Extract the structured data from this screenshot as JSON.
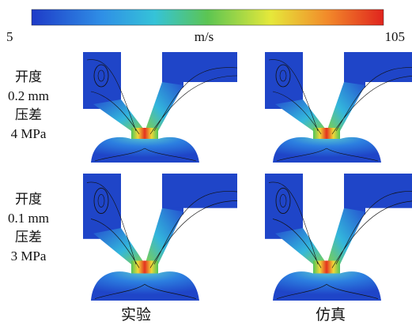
{
  "colorbar": {
    "min": 5,
    "unit": "m/s",
    "max": 105
  },
  "rows": [
    {
      "lines": [
        "开度",
        "0.2 mm",
        "压差",
        "4 MPa"
      ]
    },
    {
      "lines": [
        "开度",
        "0.1 mm",
        "压差",
        "3 MPa"
      ]
    }
  ],
  "columns": [
    "实验",
    "仿真"
  ]
}
